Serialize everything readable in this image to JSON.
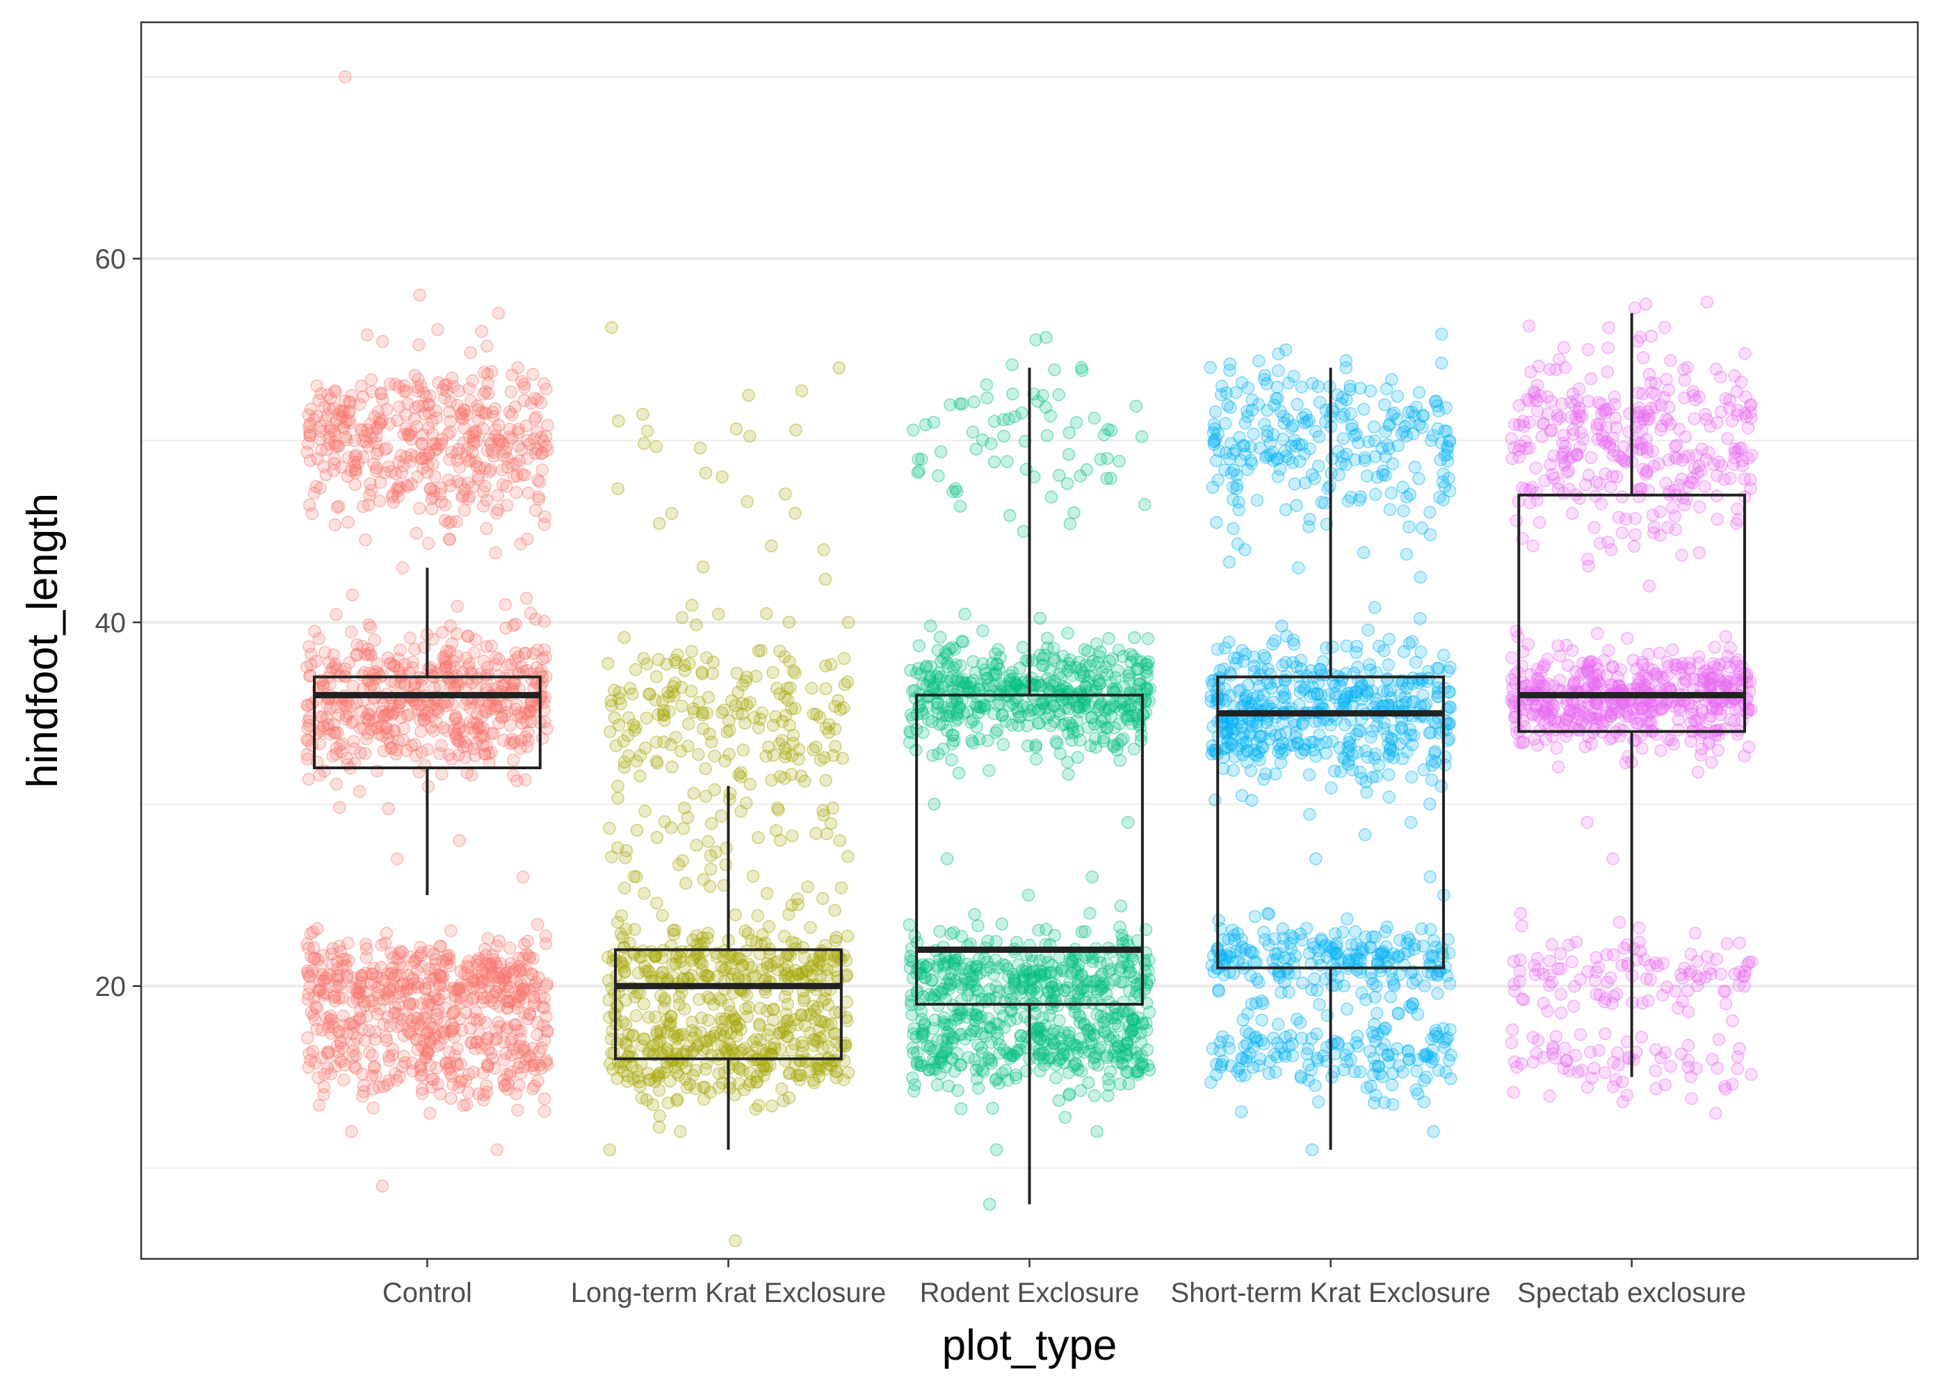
{
  "chart_data": {
    "type": "box",
    "overlay": "jittered-points",
    "xlabel": "plot_type",
    "ylabel": "hindfoot_length",
    "ylim": [
      5,
      73
    ],
    "yticks": [
      20,
      40,
      60
    ],
    "grid": true,
    "categories": [
      "Control",
      "Long-term Krat Exclosure",
      "Rodent Exclosure",
      "Short-term Krat Exclosure",
      "Spectab exclosure"
    ],
    "colors": [
      "#F8766D",
      "#A3A500",
      "#00BF7D",
      "#00B0F6",
      "#E76BF3"
    ],
    "boxes": [
      {
        "category": "Control",
        "whisker_low": 25,
        "q1": 32,
        "median": 36,
        "q3": 37,
        "whisker_high": 43
      },
      {
        "category": "Long-term Krat Exclosure",
        "whisker_low": 11,
        "q1": 16,
        "median": 20,
        "q3": 22,
        "whisker_high": 31
      },
      {
        "category": "Rodent Exclosure",
        "whisker_low": 8,
        "q1": 19,
        "median": 22,
        "q3": 36,
        "whisker_high": 54
      },
      {
        "category": "Short-term Krat Exclosure",
        "whisker_low": 11,
        "q1": 21,
        "median": 35,
        "q3": 37,
        "whisker_high": 54
      },
      {
        "category": "Spectab exclosure",
        "whisker_low": 15,
        "q1": 34,
        "median": 36,
        "q3": 47,
        "whisker_high": 57
      }
    ],
    "point_clusters": [
      {
        "category": "Control",
        "clusters": [
          {
            "center": 50,
            "spread": 2.2,
            "count": 420
          },
          {
            "center": 35.5,
            "spread": 2.0,
            "count": 520
          },
          {
            "center": 20.2,
            "spread": 1.3,
            "count": 380
          },
          {
            "center": 16.5,
            "spread": 1.5,
            "count": 260
          }
        ],
        "outliers": [
          70,
          57,
          58,
          56,
          9,
          11,
          12,
          13,
          40.5,
          43,
          26,
          27,
          28
        ]
      },
      {
        "category": "Long-term Krat Exclosure",
        "clusters": [
          {
            "center": 50,
            "spread": 2.5,
            "count": 20
          },
          {
            "center": 35,
            "spread": 2.3,
            "count": 200
          },
          {
            "center": 27,
            "spread": 2.0,
            "count": 60
          },
          {
            "center": 21,
            "spread": 1.2,
            "count": 260
          },
          {
            "center": 16.3,
            "spread": 1.4,
            "count": 330
          }
        ],
        "outliers": [
          6,
          11,
          12,
          40,
          44,
          54,
          46,
          48
        ]
      },
      {
        "category": "Rodent Exclosure",
        "clusters": [
          {
            "center": 50,
            "spread": 2.3,
            "count": 70
          },
          {
            "center": 36,
            "spread": 1.6,
            "count": 470
          },
          {
            "center": 20.5,
            "spread": 1.2,
            "count": 330
          },
          {
            "center": 16.8,
            "spread": 1.4,
            "count": 330
          }
        ],
        "outliers": [
          8,
          11,
          12,
          14,
          24,
          25,
          26,
          27,
          29,
          30,
          45,
          54
        ]
      },
      {
        "category": "Short-term Krat Exclosure",
        "clusters": [
          {
            "center": 50,
            "spread": 2.2,
            "count": 260
          },
          {
            "center": 35,
            "spread": 2.0,
            "count": 480
          },
          {
            "center": 21.5,
            "spread": 1.0,
            "count": 220
          },
          {
            "center": 16.5,
            "spread": 1.4,
            "count": 170
          }
        ],
        "outliers": [
          11,
          12,
          14,
          24,
          25,
          26,
          27,
          29,
          43,
          44,
          54
        ]
      },
      {
        "category": "Spectab exclosure",
        "clusters": [
          {
            "center": 50,
            "spread": 2.5,
            "count": 330
          },
          {
            "center": 35.8,
            "spread": 1.4,
            "count": 520
          },
          {
            "center": 20.5,
            "spread": 1.2,
            "count": 110
          },
          {
            "center": 16,
            "spread": 1.0,
            "count": 70
          }
        ],
        "outliers": [
          13,
          14,
          24,
          27,
          29,
          42,
          44,
          55,
          57.5
        ]
      }
    ]
  }
}
